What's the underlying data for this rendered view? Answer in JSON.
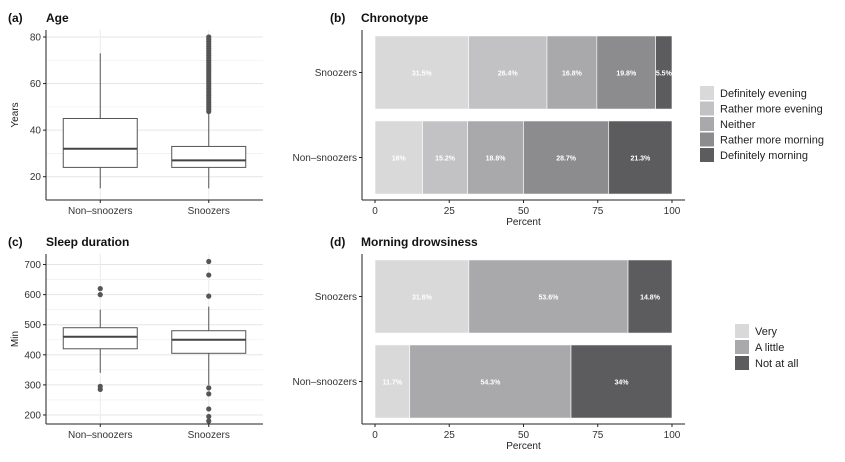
{
  "chart_data": [
    {
      "type": "box",
      "panel_label": "(a)",
      "title": "Age",
      "ylabel": "Years",
      "ylim": [
        10,
        83
      ],
      "yticks": [
        20,
        40,
        60,
        80
      ],
      "grid": true,
      "categories": [
        "Non–snoozers",
        "Snoozers"
      ],
      "boxes": [
        {
          "whisker_low": 15,
          "q1": 24,
          "median": 32,
          "q3": 45,
          "whisker_high": 73,
          "outliers": []
        },
        {
          "whisker_low": 15,
          "q1": 24,
          "median": 27,
          "q3": 33,
          "whisker_high": 47,
          "outliers": [
            48,
            49,
            50,
            51,
            52,
            53,
            54,
            55,
            56,
            57,
            58,
            59,
            60,
            61,
            62,
            63,
            64,
            65,
            66,
            67,
            68,
            69,
            70,
            71,
            72,
            73,
            74,
            75,
            76,
            77,
            78,
            79,
            80
          ]
        }
      ]
    },
    {
      "type": "stacked_bar",
      "panel_label": "(b)",
      "title": "Chronotype",
      "xlabel": "Percent",
      "xlim": [
        0,
        100
      ],
      "xticks": [
        0,
        25,
        50,
        75,
        100
      ],
      "categories": [
        "Snoozers",
        "Non–snoozers"
      ],
      "legend_position": "right",
      "series": [
        {
          "name": "Definitely evening",
          "color": "#d9d9d9",
          "values": [
            31.5,
            16
          ],
          "labels": [
            "31.5%",
            "16%"
          ]
        },
        {
          "name": "Rather more evening",
          "color": "#c2c2c4",
          "values": [
            26.4,
            15.2
          ],
          "labels": [
            "26.4%",
            "15.2%"
          ]
        },
        {
          "name": "Neither",
          "color": "#a9a9ab",
          "values": [
            16.8,
            18.8
          ],
          "labels": [
            "16.8%",
            "18.8%"
          ]
        },
        {
          "name": "Rather more morning",
          "color": "#8c8c8e",
          "values": [
            19.8,
            28.7
          ],
          "labels": [
            "19.8%",
            "28.7%"
          ]
        },
        {
          "name": "Definitely morning",
          "color": "#5c5c5e",
          "values": [
            5.5,
            21.3
          ],
          "labels": [
            "5.5%",
            "21.3%"
          ]
        }
      ]
    },
    {
      "type": "box",
      "panel_label": "(c)",
      "title": "Sleep duration",
      "ylabel": "Min",
      "ylim": [
        170,
        735
      ],
      "yticks": [
        200,
        300,
        400,
        500,
        600,
        700
      ],
      "grid": true,
      "categories": [
        "Non–snoozers",
        "Snoozers"
      ],
      "boxes": [
        {
          "whisker_low": 340,
          "q1": 420,
          "median": 460,
          "q3": 490,
          "whisker_high": 550,
          "outliers": [
            620,
            600,
            295,
            285
          ]
        },
        {
          "whisker_low": 300,
          "q1": 405,
          "median": 450,
          "q3": 480,
          "whisker_high": 560,
          "outliers": [
            710,
            665,
            595,
            290,
            270,
            220,
            195,
            180
          ]
        }
      ]
    },
    {
      "type": "stacked_bar",
      "panel_label": "(d)",
      "title": "Morning drowsiness",
      "xlabel": "Percent",
      "xlim": [
        0,
        100
      ],
      "xticks": [
        0,
        25,
        50,
        75,
        100
      ],
      "categories": [
        "Snoozers",
        "Non–snoozers"
      ],
      "legend_position": "right",
      "series": [
        {
          "name": "Very",
          "color": "#d9d9d9",
          "values": [
            31.6,
            11.7
          ],
          "labels": [
            "31.6%",
            "11.7%"
          ]
        },
        {
          "name": "A little",
          "color": "#a9a9ab",
          "values": [
            53.6,
            54.3
          ],
          "labels": [
            "53.6%",
            "54.3%"
          ]
        },
        {
          "name": "Not at all",
          "color": "#5c5c5e",
          "values": [
            14.8,
            34
          ],
          "labels": [
            "14.8%",
            "34%"
          ]
        }
      ]
    }
  ]
}
